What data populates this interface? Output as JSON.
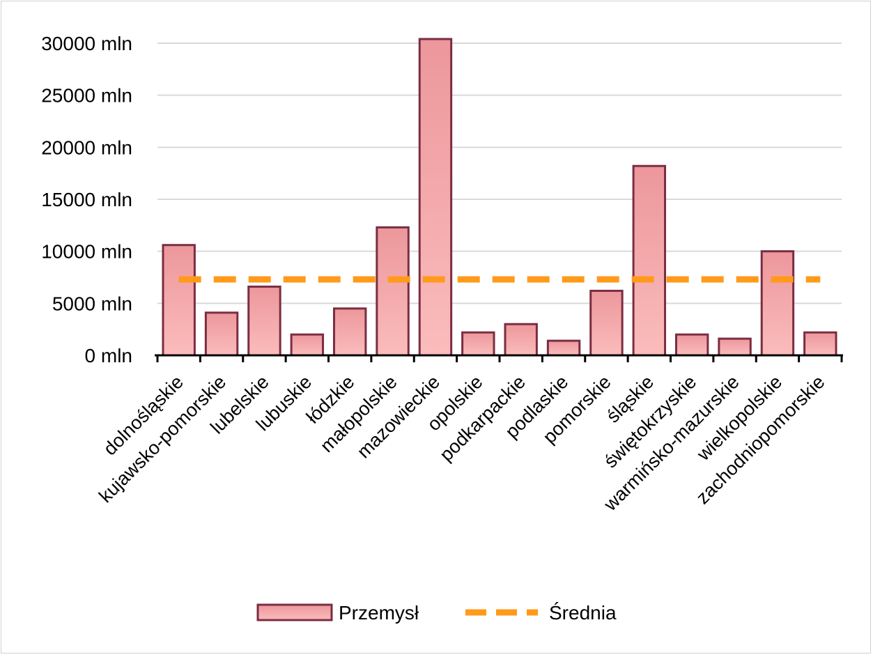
{
  "chart_data": {
    "type": "bar",
    "title": "",
    "xlabel": "",
    "ylabel": "",
    "ylim": [
      0,
      30000
    ],
    "grid": true,
    "y_unit_suffix": " mln",
    "y_ticks": [
      0,
      5000,
      10000,
      15000,
      20000,
      25000,
      30000
    ],
    "y_tick_labels": [
      "0 mln",
      "5000 mln",
      "10000 mln",
      "15000 mln",
      "20000 mln",
      "25000 mln",
      "30000 mln"
    ],
    "categories": [
      "dolnośląskie",
      "kujawsko-pomorskie",
      "lubelskie",
      "lubuskie",
      "łódzkie",
      "małopolskie",
      "mazowieckie",
      "opolskie",
      "podkarpackie",
      "podlaskie",
      "pomorskie",
      "śląskie",
      "świętokrzyskie",
      "warmińsko-mazurskie",
      "wielkopolskie",
      "zachodniopomorskie"
    ],
    "series": [
      {
        "name": "Przemysł",
        "kind": "bar",
        "color": "#f4a3a8",
        "border_color": "#7b2d42",
        "values": [
          10600,
          4100,
          6600,
          2000,
          4500,
          12300,
          30400,
          2200,
          3000,
          1400,
          6200,
          18200,
          2000,
          1600,
          10000,
          2200
        ]
      },
      {
        "name": "Średnia",
        "kind": "line",
        "style": "dashed",
        "color": "#ff9a1a",
        "value": 7300
      }
    ],
    "legend": {
      "position": "bottom",
      "entries": [
        "Przemysł",
        "Średnia"
      ]
    }
  }
}
